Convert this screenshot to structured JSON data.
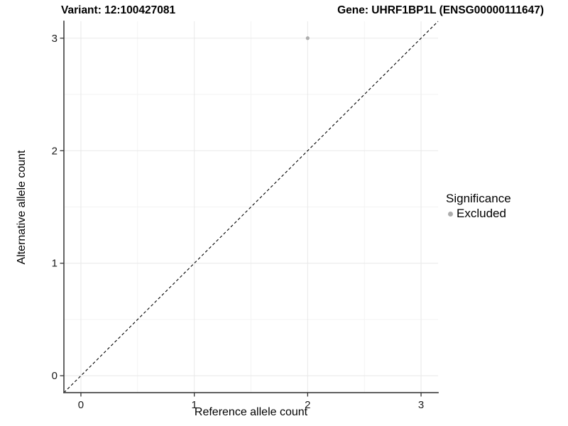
{
  "chart_data": {
    "type": "scatter",
    "title_left": "Variant: 12:100427081",
    "title_right": "Gene: UHRF1BP1L (ENSG00000111647)",
    "xlabel": "Reference allele count",
    "ylabel": "Alternative allele count",
    "xlim": [
      -0.15,
      3.15
    ],
    "ylim": [
      -0.15,
      3.15
    ],
    "x_ticks": [
      0,
      1,
      2,
      3
    ],
    "y_ticks": [
      0,
      1,
      2,
      3
    ],
    "grid": "major gridlines at integers, minor gridlines at halves, light gray on white",
    "legend": {
      "title": "Significance",
      "position": "right-middle",
      "items": [
        {
          "label": "Excluded",
          "color": "#adadad"
        }
      ]
    },
    "series": [
      {
        "name": "Excluded",
        "color": "#adadad",
        "points": [
          {
            "x": 2,
            "y": 3
          }
        ],
        "point_radius": 2.6
      }
    ],
    "reference_line": {
      "kind": "identity y=x diagonal",
      "style": "dashed",
      "color": "#000000"
    },
    "colors": {
      "background": "#ffffff",
      "grid_major": "#e8e8e8",
      "grid_minor": "#f3f3f3",
      "axis_line": "#4a4a4a",
      "tick_mark": "#333333",
      "tick_label": "#1a1a1a",
      "text": "#000000"
    }
  }
}
